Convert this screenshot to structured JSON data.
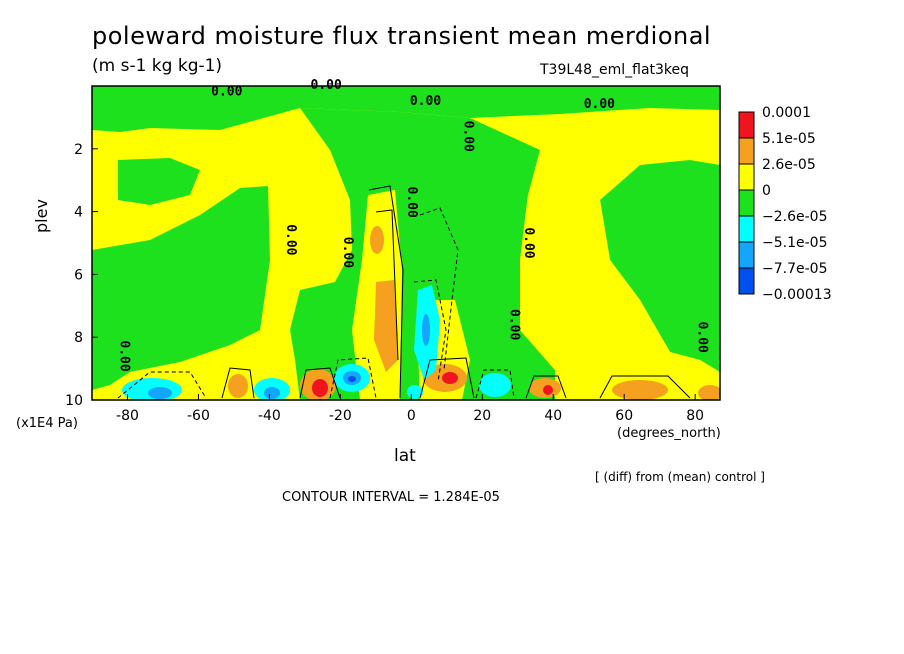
{
  "chart_data": {
    "type": "heatmap",
    "title": "poleward moisture flux transient mean merdional",
    "units": "(m s-1 kg kg-1)",
    "run_id": "T39L48_eml_flat3keq",
    "xlabel": "lat",
    "x_units": "(degrees_north)",
    "ylabel": "plev",
    "y_units": "(x1E4 Pa)",
    "x_range": [
      -90,
      87
    ],
    "y_range": [
      0,
      10
    ],
    "y_inverted": true,
    "x_ticks": [
      "-80",
      "-60",
      "-40",
      "-20",
      "0",
      "20",
      "40",
      "60",
      "80"
    ],
    "x_tick_values": [
      -80,
      -60,
      -40,
      -20,
      0,
      20,
      40,
      60,
      80
    ],
    "y_ticks": [
      "2",
      "4",
      "6",
      "8",
      "10"
    ],
    "y_tick_values": [
      2,
      4,
      6,
      8,
      10
    ],
    "colorbar": {
      "labels": [
        "0.0001",
        "5.1e-05",
        "2.6e-05",
        "0",
        "−2.6e-05",
        "−5.1e-05",
        "−7.7e-05",
        "−0.00013"
      ],
      "colors": [
        "#f0141e",
        "#f5a01e",
        "#ffff00",
        "#1ee11e",
        "#00ffff",
        "#14a5ff",
        "#0050f0"
      ]
    },
    "contour_labels": [
      "0.00",
      "0.00",
      "0.00",
      "0.00",
      "0.00",
      "0.00",
      "0.00",
      "0.00",
      "0.00",
      "0.00",
      "0.00",
      "0.00"
    ],
    "contour_interval_text": "CONTOUR INTERVAL = 1.284E-05",
    "diff_note": "[ (diff) from (mean) control ]"
  }
}
